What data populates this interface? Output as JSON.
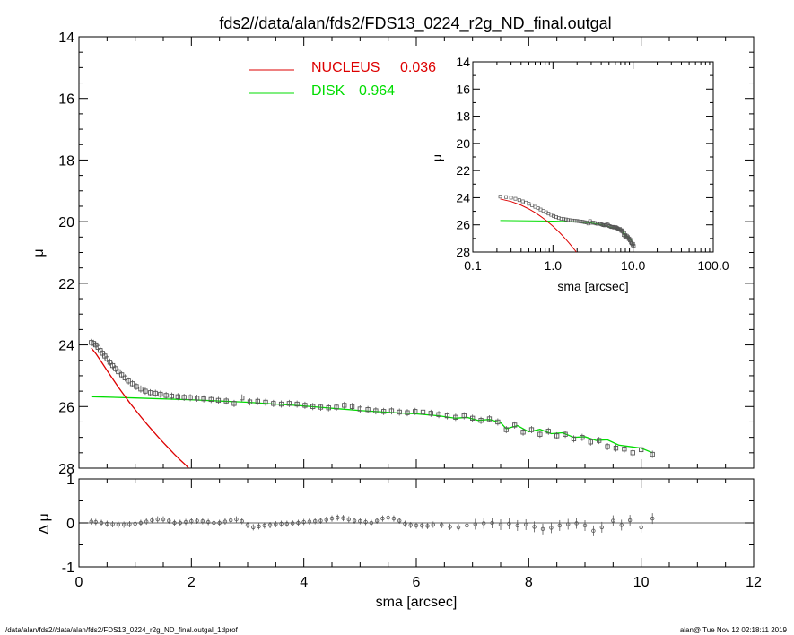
{
  "title": "fds2//data/alan/fds2/FDS13_0224_r2g_ND_final.outgal",
  "footer_left": "/data/alan/fds2//data/alan/fds2/FDS13_0224_r2g_ND_final.outgal_1dprof",
  "footer_right": "alan@  Tue Nov 12 02:18:11 2019",
  "colors": {
    "nucleus": "#dd0000",
    "disk": "#00dd00",
    "data": "#555555",
    "axes": "#000000"
  },
  "chart_data": [
    {
      "id": "main",
      "type": "line",
      "xlabel": "sma [arcsec]",
      "ylabel": "μ",
      "xlim": [
        0,
        12
      ],
      "ylim": [
        28,
        14
      ],
      "xticks": [
        "0",
        "2",
        "4",
        "6",
        "8",
        "10",
        "12"
      ],
      "yticks": [
        "14",
        "16",
        "18",
        "20",
        "22",
        "24",
        "26",
        "28"
      ],
      "legend": {
        "placement": "top-center",
        "entries": [
          {
            "name": "NUCLEUS",
            "value": "0.036",
            "color": "#dd0000"
          },
          {
            "name": "DISK",
            "value": "0.964",
            "color": "#00dd00"
          }
        ]
      },
      "series": [
        {
          "name": "NUCLEUS",
          "kind": "line",
          "x": [
            0.22,
            0.3,
            0.4,
            0.5,
            0.6,
            0.7,
            0.8,
            0.9,
            1.0,
            1.1,
            1.2,
            1.3,
            1.4,
            1.5,
            1.6,
            1.7,
            1.8,
            1.9,
            1.95
          ],
          "y": [
            24.1,
            24.28,
            24.55,
            24.83,
            25.1,
            25.37,
            25.62,
            25.87,
            26.1,
            26.33,
            26.55,
            26.76,
            26.97,
            27.17,
            27.36,
            27.55,
            27.73,
            27.9,
            28.0
          ]
        },
        {
          "name": "DISK",
          "kind": "line",
          "x": [
            0.22,
            1.0,
            2.0,
            3.0,
            4.0,
            5.0,
            5.6,
            6.0,
            6.4,
            6.7,
            6.9,
            7.1,
            7.3,
            7.5,
            7.6,
            7.8,
            8.0,
            8.2,
            8.4,
            8.6,
            8.8,
            9.0,
            9.2,
            9.4,
            9.6,
            9.8,
            10.0,
            10.2
          ],
          "y": [
            25.68,
            25.72,
            25.78,
            25.86,
            25.98,
            26.13,
            26.2,
            26.24,
            26.3,
            26.38,
            26.35,
            26.45,
            26.42,
            26.52,
            26.72,
            26.62,
            26.82,
            26.74,
            26.88,
            26.85,
            27.0,
            26.98,
            27.1,
            27.08,
            27.25,
            27.3,
            27.35,
            27.5
          ]
        },
        {
          "name": "data",
          "kind": "points",
          "x": [
            0.22,
            0.26,
            0.3,
            0.34,
            0.38,
            0.42,
            0.46,
            0.5,
            0.55,
            0.6,
            0.65,
            0.7,
            0.76,
            0.82,
            0.88,
            0.95,
            1.02,
            1.1,
            1.18,
            1.27,
            1.36,
            1.45,
            1.55,
            1.65,
            1.76,
            1.87,
            1.98,
            2.1,
            2.22,
            2.35,
            2.48,
            2.62,
            2.76,
            2.9,
            3.04,
            3.18,
            3.32,
            3.46,
            3.6,
            3.74,
            3.88,
            4.02,
            4.16,
            4.3,
            4.44,
            4.58,
            4.72,
            4.86,
            5.0,
            5.14,
            5.28,
            5.42,
            5.56,
            5.7,
            5.84,
            5.98,
            6.12,
            6.26,
            6.4,
            6.55,
            6.7,
            6.85,
            7.0,
            7.15,
            7.3,
            7.45,
            7.6,
            7.75,
            7.9,
            8.05,
            8.2,
            8.35,
            8.5,
            8.65,
            8.8,
            8.95,
            9.1,
            9.25,
            9.4,
            9.55,
            9.7,
            9.85,
            10.0,
            10.2
          ],
          "y": [
            23.92,
            23.95,
            24.0,
            24.08,
            24.18,
            24.27,
            24.36,
            24.45,
            24.56,
            24.67,
            24.77,
            24.87,
            24.97,
            25.07,
            25.17,
            25.26,
            25.35,
            25.43,
            25.5,
            25.55,
            25.57,
            25.6,
            25.64,
            25.66,
            25.68,
            25.7,
            25.71,
            25.73,
            25.75,
            25.77,
            25.8,
            25.82,
            25.9,
            25.72,
            25.85,
            25.83,
            25.86,
            25.9,
            25.92,
            25.9,
            25.92,
            25.96,
            26.0,
            26.02,
            26.04,
            26.02,
            25.96,
            26.0,
            26.08,
            26.1,
            26.14,
            26.16,
            26.14,
            26.18,
            26.2,
            26.16,
            26.18,
            26.22,
            26.26,
            26.3,
            26.35,
            26.3,
            26.38,
            26.45,
            26.4,
            26.5,
            26.75,
            26.6,
            26.83,
            26.75,
            26.9,
            26.8,
            26.95,
            26.9,
            27.05,
            27.0,
            27.15,
            27.1,
            27.3,
            27.35,
            27.38,
            27.5,
            27.4,
            27.55
          ]
        }
      ]
    },
    {
      "id": "inset",
      "type": "line",
      "xlabel": "sma [arcsec]",
      "ylabel": "μ",
      "xscale": "log",
      "xlim": [
        0.1,
        100
      ],
      "ylim": [
        28,
        14
      ],
      "xticks": [
        "0.1",
        "1.0",
        "10.0",
        "100.0"
      ],
      "yticks": [
        "14",
        "16",
        "18",
        "20",
        "22",
        "24",
        "26",
        "28"
      ],
      "series": [
        {
          "name": "NUCLEUS",
          "kind": "line",
          "same_as": "main.NUCLEUS"
        },
        {
          "name": "DISK",
          "kind": "line",
          "same_as": "main.DISK"
        },
        {
          "name": "data",
          "kind": "points",
          "same_as": "main.data"
        }
      ]
    },
    {
      "id": "residuals",
      "type": "scatter",
      "xlabel": "sma [arcsec]",
      "ylabel": "Δ μ",
      "xlim": [
        0,
        12
      ],
      "ylim": [
        -1,
        1
      ],
      "yticks": [
        "-1",
        "0",
        "1"
      ],
      "series": [
        {
          "name": "residual",
          "x": [
            0.22,
            0.3,
            0.4,
            0.5,
            0.6,
            0.7,
            0.8,
            0.9,
            1.0,
            1.1,
            1.2,
            1.3,
            1.4,
            1.5,
            1.6,
            1.7,
            1.8,
            1.9,
            2.0,
            2.1,
            2.2,
            2.3,
            2.4,
            2.5,
            2.6,
            2.7,
            2.8,
            2.9,
            3.0,
            3.1,
            3.2,
            3.3,
            3.4,
            3.5,
            3.6,
            3.7,
            3.8,
            3.9,
            4.0,
            4.1,
            4.2,
            4.3,
            4.4,
            4.5,
            4.6,
            4.7,
            4.8,
            4.9,
            5.0,
            5.1,
            5.2,
            5.3,
            5.4,
            5.5,
            5.6,
            5.7,
            5.8,
            5.9,
            6.0,
            6.1,
            6.2,
            6.3,
            6.45,
            6.6,
            6.75,
            6.9,
            7.05,
            7.2,
            7.35,
            7.5,
            7.65,
            7.8,
            7.95,
            8.1,
            8.25,
            8.4,
            8.55,
            8.7,
            8.85,
            9.0,
            9.15,
            9.3,
            9.5,
            9.65,
            9.8,
            10.0,
            10.2
          ],
          "y": [
            0.03,
            0.02,
            0.0,
            -0.02,
            -0.03,
            -0.04,
            -0.04,
            -0.03,
            -0.02,
            0.0,
            0.03,
            0.06,
            0.08,
            0.08,
            0.05,
            0.0,
            0.0,
            0.02,
            0.04,
            0.05,
            0.04,
            0.02,
            0.0,
            0.0,
            0.03,
            0.06,
            0.08,
            0.04,
            -0.05,
            -0.1,
            -0.08,
            -0.06,
            -0.05,
            -0.03,
            -0.02,
            -0.02,
            -0.01,
            0.0,
            0.02,
            0.03,
            0.04,
            0.05,
            0.07,
            0.1,
            0.12,
            0.11,
            0.08,
            0.05,
            0.04,
            0.02,
            0.0,
            0.05,
            0.1,
            0.12,
            0.1,
            0.05,
            -0.02,
            -0.05,
            -0.06,
            -0.06,
            -0.07,
            -0.04,
            -0.05,
            -0.09,
            -0.1,
            -0.06,
            -0.03,
            -0.01,
            0.0,
            -0.04,
            -0.02,
            -0.06,
            -0.04,
            -0.09,
            -0.14,
            -0.11,
            -0.06,
            -0.03,
            -0.01,
            -0.06,
            -0.18,
            -0.1,
            0.05,
            -0.05,
            0.06,
            -0.1,
            0.1
          ]
        }
      ]
    }
  ]
}
